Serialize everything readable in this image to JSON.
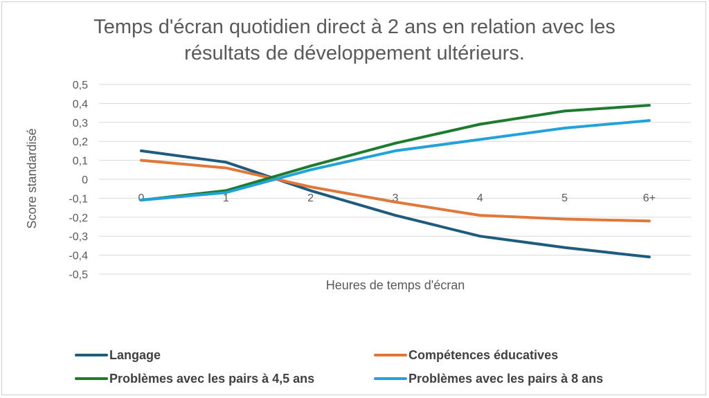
{
  "chart_data": {
    "type": "line",
    "title": "Temps d'écran quotidien direct à 2 ans en relation avec les résultats de développement ultérieurs.",
    "title_lines": [
      "Temps d'écran quotidien direct à 2 ans en relation avec les",
      "résultats de développement ultérieurs."
    ],
    "xlabel": "Heures de temps d'écran",
    "ylabel": "Score standardisé",
    "categories": [
      "0",
      "1",
      "2",
      "3",
      "4",
      "5",
      "6+"
    ],
    "ylim": [
      -0.5,
      0.5
    ],
    "yticks": [
      0.5,
      0.4,
      0.3,
      0.2,
      0.1,
      0,
      -0.1,
      -0.2,
      -0.3,
      -0.4,
      -0.5
    ],
    "ytick_labels": [
      "0,5",
      "0,4",
      "0,3",
      "0,2",
      "0,1",
      "0",
      "-0,1",
      "-0,2",
      "-0,3",
      "-0,4",
      "-0,5"
    ],
    "grid": true,
    "legend_position": "bottom",
    "series": [
      {
        "name": "Langage",
        "color": "#1f5b7d",
        "values": [
          0.15,
          0.09,
          -0.06,
          -0.19,
          -0.3,
          -0.36,
          -0.41
        ]
      },
      {
        "name": "Compétences éducatives",
        "color": "#e0773b",
        "values": [
          0.1,
          0.06,
          -0.04,
          -0.12,
          -0.19,
          -0.21,
          -0.22
        ]
      },
      {
        "name": "Problèmes avec les pairs à 4,5 ans",
        "color": "#1e7a2e",
        "values": [
          -0.11,
          -0.06,
          0.07,
          0.19,
          0.29,
          0.36,
          0.39
        ]
      },
      {
        "name": "Problèmes avec les pairs à 8 ans",
        "color": "#22a2d8",
        "values": [
          -0.11,
          -0.07,
          0.05,
          0.15,
          0.21,
          0.27,
          0.31
        ]
      }
    ]
  }
}
